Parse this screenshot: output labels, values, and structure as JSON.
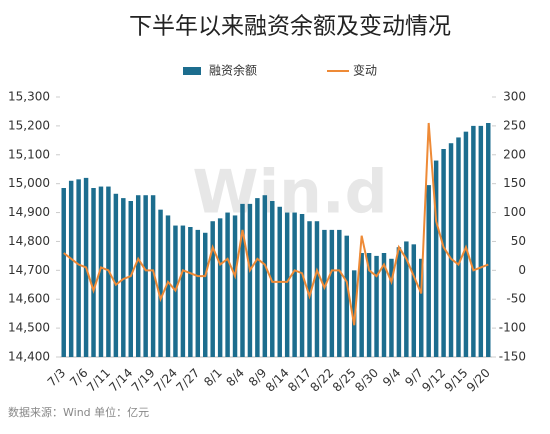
{
  "chart_data": {
    "type": "bar-line",
    "title": "下半年以来融资余额及变动情况",
    "source": "数据来源：Wind    单位：亿元",
    "watermark": "Win.d",
    "categories": [
      "7/3",
      null,
      null,
      "7/6",
      null,
      null,
      "7/11",
      null,
      null,
      "7/14",
      null,
      null,
      "7/19",
      null,
      null,
      "7/24",
      null,
      null,
      "7/27",
      null,
      null,
      "8/1",
      null,
      null,
      "8/4",
      null,
      null,
      "8/9",
      null,
      null,
      "8/14",
      null,
      null,
      "8/17",
      null,
      null,
      "8/22",
      null,
      null,
      "8/25",
      null,
      null,
      "8/30",
      null,
      null,
      "9/4",
      null,
      null,
      "9/7",
      null,
      null,
      "9/12",
      null,
      null,
      "9/15",
      null,
      null,
      "9/20"
    ],
    "series": [
      {
        "name": "融资余额",
        "color": "#1c6d8e",
        "kind": "bar",
        "axis": "y",
        "values": [
          14985,
          15010,
          15015,
          15020,
          14985,
          14990,
          14990,
          14965,
          14950,
          14940,
          14960,
          14960,
          14960,
          14910,
          14890,
          14855,
          14855,
          14850,
          14840,
          14830,
          14870,
          14880,
          14900,
          14890,
          14930,
          14930,
          14950,
          14960,
          14940,
          14920,
          14900,
          14900,
          14895,
          14870,
          14870,
          14840,
          14840,
          14840,
          14820,
          14700,
          14760,
          14760,
          14750,
          14760,
          14740,
          14780,
          14800,
          14790,
          14740,
          14995,
          15080,
          15120,
          15140,
          15160,
          15180,
          15200,
          15200,
          15210
        ]
      },
      {
        "name": "变动",
        "color": "#ee8a36",
        "kind": "line",
        "axis": "y2",
        "values": [
          30,
          20,
          10,
          5,
          -35,
          5,
          0,
          -25,
          -15,
          -10,
          20,
          0,
          0,
          -50,
          -20,
          -35,
          0,
          -5,
          -10,
          -10,
          40,
          10,
          20,
          -10,
          70,
          0,
          20,
          10,
          -20,
          -20,
          -20,
          0,
          -5,
          -45,
          0,
          -30,
          0,
          0,
          -20,
          -95,
          60,
          0,
          -10,
          10,
          -20,
          40,
          20,
          -10,
          -40,
          255,
          85,
          40,
          20,
          10,
          40,
          0,
          5,
          10
        ]
      }
    ],
    "ylim": [
      14400,
      15300
    ],
    "yticks": [
      {
        "value": 14400,
        "label": "14,400"
      },
      {
        "value": 14500,
        "label": "14,500"
      },
      {
        "value": 14600,
        "label": "14,600"
      },
      {
        "value": 14700,
        "label": "14,700"
      },
      {
        "value": 14800,
        "label": "14,800"
      },
      {
        "value": 14900,
        "label": "14,900"
      },
      {
        "value": 15000,
        "label": "15,000"
      },
      {
        "value": 15100,
        "label": "15,100"
      },
      {
        "value": 15200,
        "label": "15,200"
      },
      {
        "value": 15300,
        "label": "15,300"
      }
    ],
    "y2lim": [
      -150,
      300
    ],
    "y2ticks": [
      -150,
      -100,
      -50,
      0,
      50,
      100,
      150,
      200,
      250,
      300
    ]
  }
}
